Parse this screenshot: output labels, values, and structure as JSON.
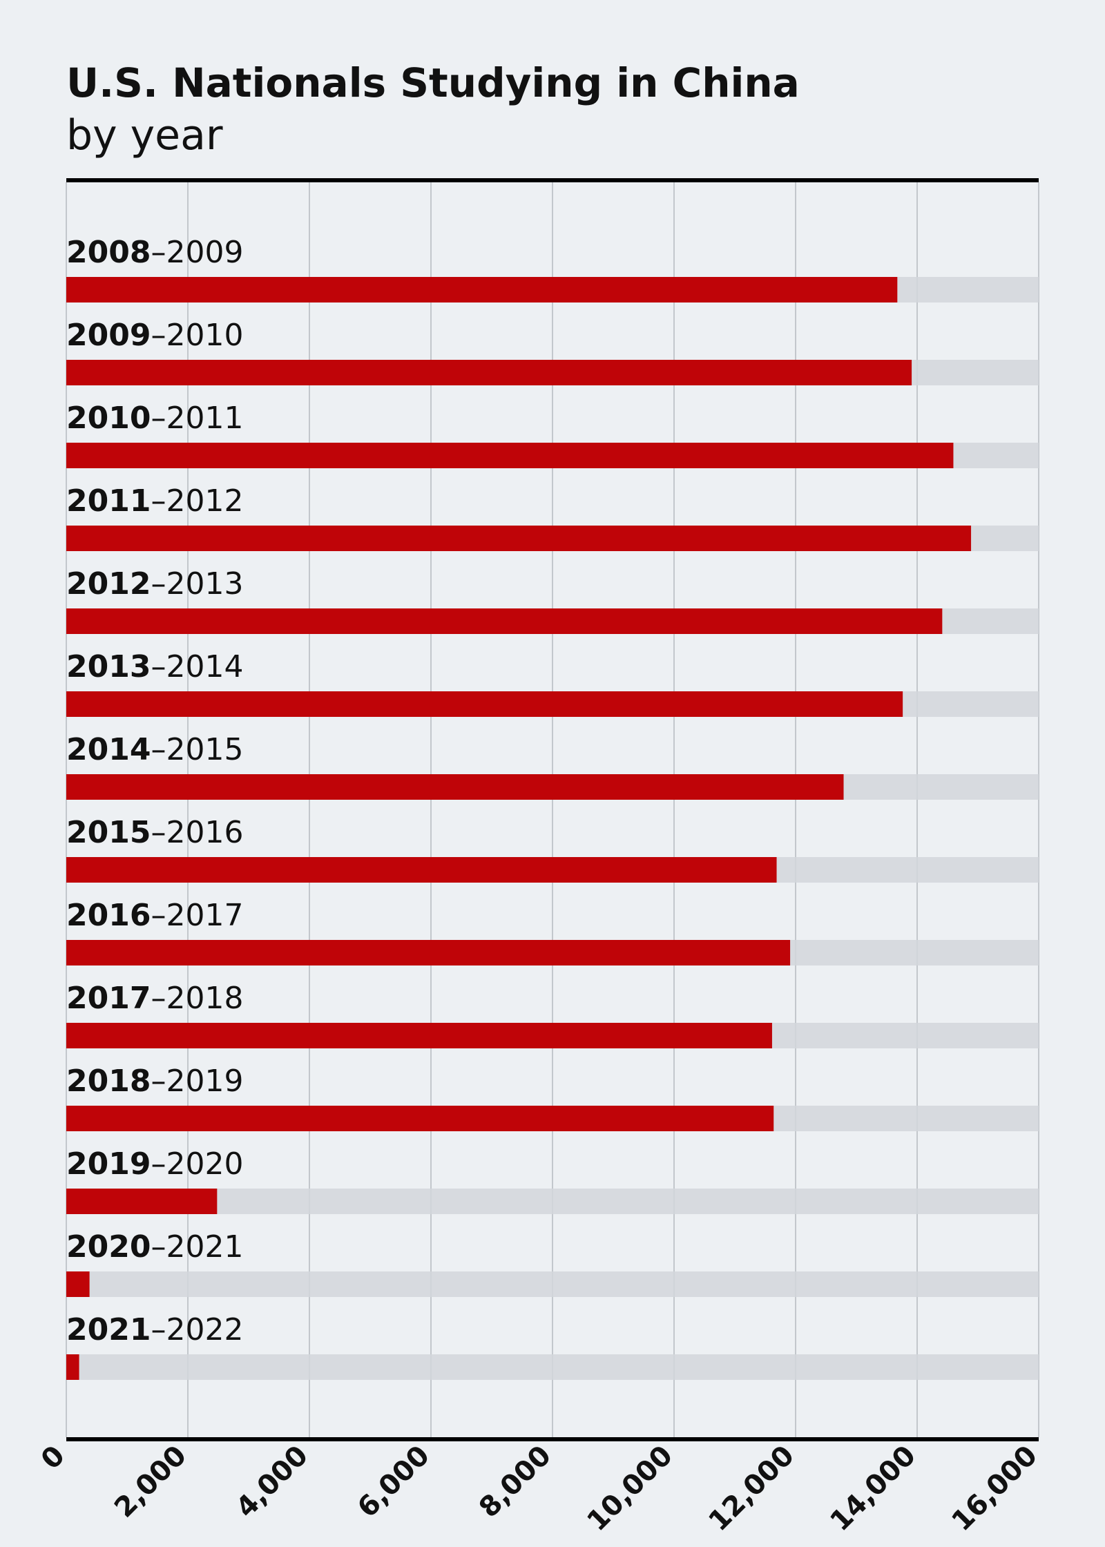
{
  "title": "U.S. Nationals Studying in China",
  "subtitle": "by year",
  "colors": {
    "bar": "#bf0408",
    "track": "#d2d6da",
    "background": "#edf0f3",
    "grid": "#c3c7cc",
    "axis": "#000000"
  },
  "chart_data": {
    "type": "bar",
    "orientation": "horizontal",
    "title": "U.S. Nationals Studying in China",
    "subtitle": "by year",
    "xlim": [
      0,
      16000
    ],
    "xticks": [
      "0",
      "2,000",
      "4,000",
      "6,000",
      "8,000",
      "10,000",
      "12,000",
      "14,000",
      "16,000"
    ],
    "grid": true,
    "categories": [
      {
        "start": "2008",
        "end": "–2009"
      },
      {
        "start": "2009",
        "end": "–2010"
      },
      {
        "start": "2010",
        "end": "–2011"
      },
      {
        "start": "2011",
        "end": "–2012"
      },
      {
        "start": "2012",
        "end": "–2013"
      },
      {
        "start": "2013",
        "end": "–2014"
      },
      {
        "start": "2014",
        "end": "–2015"
      },
      {
        "start": "2015",
        "end": "–2016"
      },
      {
        "start": "2016",
        "end": "–2017"
      },
      {
        "start": "2017",
        "end": "–2018"
      },
      {
        "start": "2018",
        "end": "–2019"
      },
      {
        "start": "2019",
        "end": "–2020"
      },
      {
        "start": "2020",
        "end": "–2021"
      },
      {
        "start": "2021",
        "end": "–2022"
      }
    ],
    "values": [
      13674,
      13910,
      14596,
      14887,
      14413,
      13763,
      12790,
      11688,
      11910,
      11613,
      11639,
      2481,
      382,
      211
    ]
  }
}
